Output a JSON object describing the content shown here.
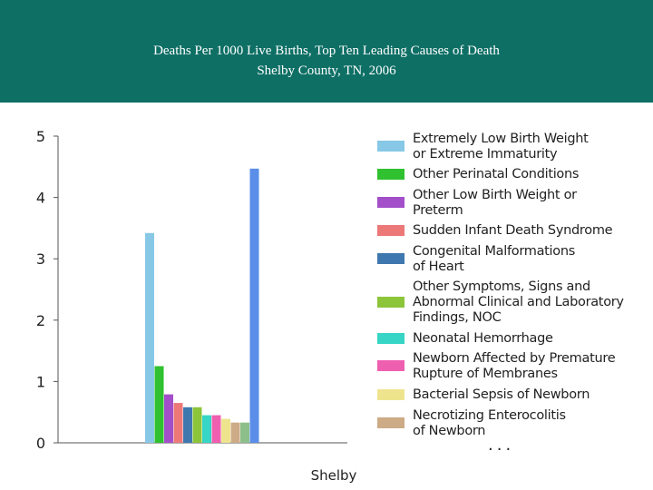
{
  "header": {
    "title_line1": "Deaths Per 1000 Live Births, Top Ten Leading Causes of Death",
    "title_line2": "Shelby County, TN, 2006"
  },
  "chart_data": {
    "type": "bar",
    "categories": [
      "Shelby"
    ],
    "ylim": [
      0,
      5
    ],
    "yticks": [
      "0",
      "1",
      "2",
      "3",
      "4",
      "5"
    ],
    "series": [
      {
        "name": "Extremely Low Birth Weight or Extreme Immaturity",
        "values": [
          3.42
        ],
        "color": "#87c8e6"
      },
      {
        "name": "Other Perinatal Conditions",
        "values": [
          1.25
        ],
        "color": "#2fc12f"
      },
      {
        "name": "Other Low Birth Weight or Preterm",
        "values": [
          0.79
        ],
        "color": "#a24fc9"
      },
      {
        "name": "Sudden Infant Death Syndrome",
        "values": [
          0.65
        ],
        "color": "#ec7878"
      },
      {
        "name": "Congenital Malformations of Heart",
        "values": [
          0.58
        ],
        "color": "#3f78ae"
      },
      {
        "name": "Other Symptoms, Signs and Abnormal Clinical and Laboratory Findings, NOC",
        "values": [
          0.58
        ],
        "color": "#8cc43a"
      },
      {
        "name": "Neonatal Hemorrhage",
        "values": [
          0.45
        ],
        "color": "#36d5c5"
      },
      {
        "name": "Newborn Affected by Premature Rupture of Membranes",
        "values": [
          0.45
        ],
        "color": "#ef5fb0"
      },
      {
        "name": "Bacterial Sepsis of Newborn",
        "values": [
          0.39
        ],
        "color": "#efe48e"
      },
      {
        "name": "Necrotizing Enterocolitis of Newborn",
        "values": [
          0.33
        ],
        "color": "#cdab86"
      },
      {
        "name": "",
        "values": [
          0.33
        ],
        "color": "#8dbf8a"
      },
      {
        "name": "",
        "values": [
          4.47
        ],
        "color": "#5a8ee8"
      }
    ]
  },
  "legend": {
    "items": [
      {
        "line1": "Extremely Low Birth Weight",
        "line2": "or Extreme Immaturity",
        "line3": "",
        "color": "#87c8e6"
      },
      {
        "line1": "Other Perinatal Conditions",
        "line2": "",
        "line3": "",
        "color": "#2fc12f"
      },
      {
        "line1": "Other Low Birth Weight or",
        "line2": "Preterm",
        "line3": "",
        "color": "#a24fc9"
      },
      {
        "line1": "Sudden Infant Death Syndrome",
        "line2": "",
        "line3": "",
        "color": "#ec7878"
      },
      {
        "line1": "Congenital Malformations",
        "line2": "of Heart",
        "line3": "",
        "color": "#3f78ae"
      },
      {
        "line1": "Other Symptoms, Signs and",
        "line2": "Abnormal Clinical and Laboratory",
        "line3": "Findings, NOC",
        "color": "#8cc43a"
      },
      {
        "line1": "Neonatal Hemorrhage",
        "line2": "",
        "line3": "",
        "color": "#36d5c5"
      },
      {
        "line1": "Newborn Affected by Premature",
        "line2": "Rupture of Membranes",
        "line3": "",
        "color": "#ef5fb0"
      },
      {
        "line1": "Bacterial Sepsis of Newborn",
        "line2": "",
        "line3": "",
        "color": "#efe48e"
      },
      {
        "line1": "Necrotizing Enterocolitis",
        "line2": "of Newborn",
        "line3": "",
        "color": "#cdab86"
      }
    ],
    "more": "..."
  }
}
